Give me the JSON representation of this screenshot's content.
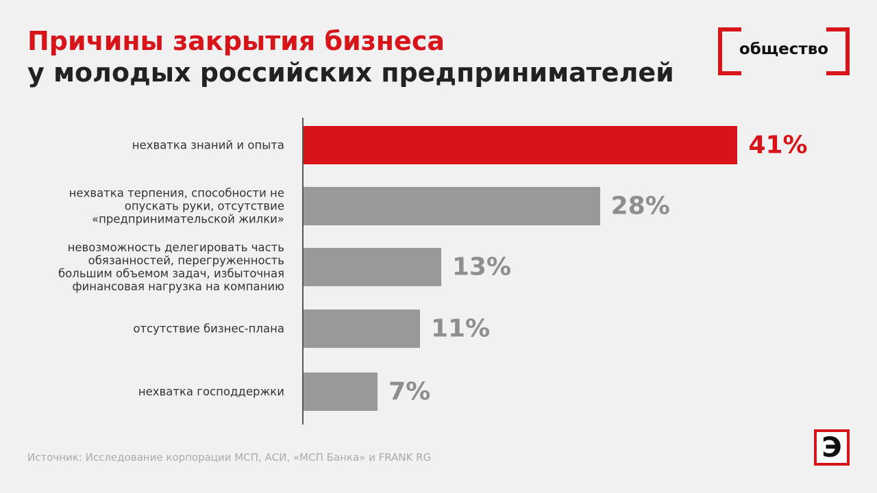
{
  "chart_data": {
    "type": "bar",
    "title": "Причины закрытия бизнеса",
    "subtitle": "у молодых российских предпринимателей",
    "tag": "общество",
    "logo": "Э",
    "source": "Источник: Исследование корпорации МСП, АСИ, «МСП Банка» и FRANK RG",
    "categories": [
      "нехватка знаний и опыта",
      "нехватка терпения, способности не\nопускать руки, отсутствие\n«предпринимательской жилки»",
      "невозможность делегировать часть\nобязанностей, перегруженность\nбольшим объемом задач, избыточная\nфинансовая нагрузка на компанию",
      "отсутствие бизнес-плана",
      "нехватка господдержки"
    ],
    "values": [
      41,
      28,
      13,
      11,
      7
    ],
    "value_labels": [
      "41%",
      "28%",
      "13%",
      "11%",
      "7%"
    ],
    "colors": [
      "#d7141a",
      "#999999",
      "#999999",
      "#999999",
      "#999999"
    ]
  }
}
